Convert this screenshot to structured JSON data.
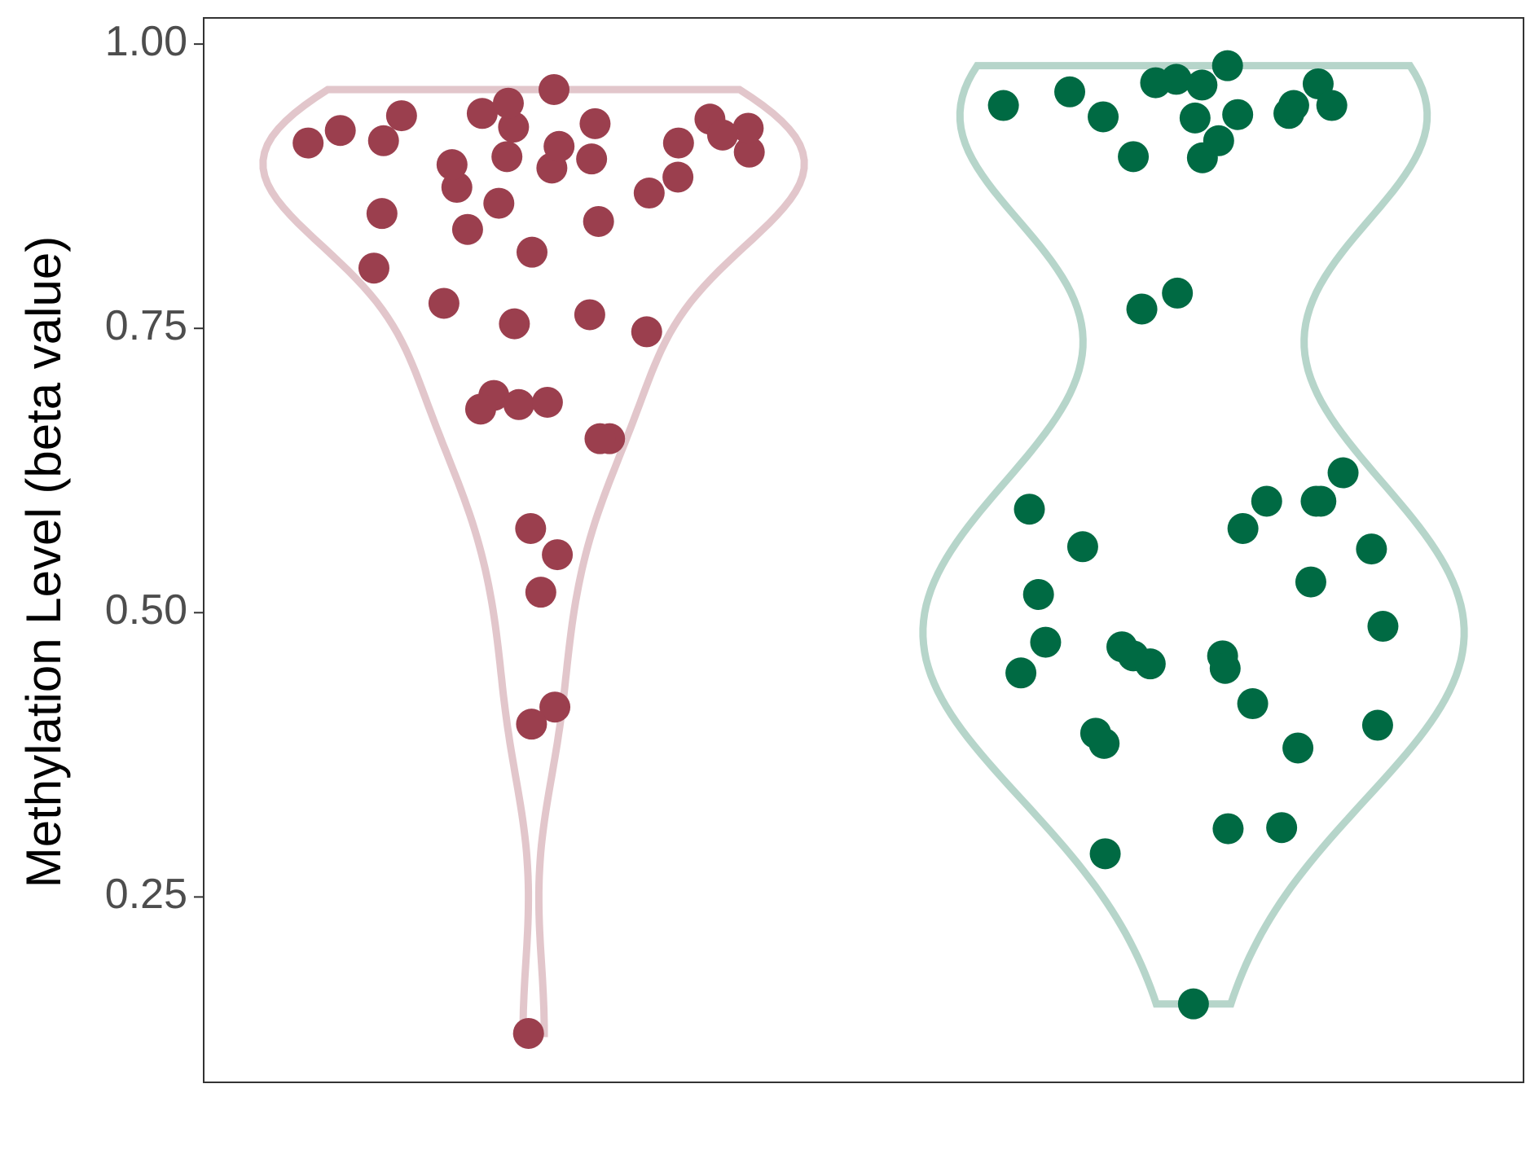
{
  "chart_data": {
    "type": "violin",
    "ylabel": "Methylation Level (beta value)",
    "ylim": [
      0.087,
      1.023
    ],
    "yticks": [
      {
        "value": 0.25,
        "label": "0.25"
      },
      {
        "value": 0.5,
        "label": "0.50"
      },
      {
        "value": 0.75,
        "label": "0.75"
      },
      {
        "value": 1,
        "label": "1.00"
      }
    ],
    "series": [
      {
        "color": "#9b3f4e",
        "outline": "#e2c6cb",
        "values": [
          0.913,
          0.934,
          0.924,
          0.96,
          0.939,
          0.927,
          0.899,
          0.915,
          0.874,
          0.891,
          0.905,
          0.913,
          0.937,
          0.926,
          0.883,
          0.901,
          0.92,
          0.948,
          0.93,
          0.894,
          0.869,
          0.91,
          0.844,
          0.86,
          0.851,
          0.837,
          0.817,
          0.803,
          0.772,
          0.754,
          0.747,
          0.762,
          0.691,
          0.683,
          0.679,
          0.685,
          0.653,
          0.653,
          0.574,
          0.551,
          0.518,
          0.417,
          0.402,
          0.13
        ]
      },
      {
        "color": "#006a43",
        "outline": "#b6d5ca",
        "values": [
          0.958,
          0.939,
          0.915,
          0.969,
          0.936,
          0.965,
          0.946,
          0.935,
          0.9,
          0.964,
          0.946,
          0.981,
          0.938,
          0.966,
          0.946,
          0.901,
          0.781,
          0.767,
          0.623,
          0.598,
          0.598,
          0.598,
          0.591,
          0.574,
          0.556,
          0.558,
          0.527,
          0.516,
          0.488,
          0.474,
          0.47,
          0.462,
          0.462,
          0.455,
          0.451,
          0.447,
          0.42,
          0.401,
          0.394,
          0.385,
          0.381,
          0.311,
          0.31,
          0.288,
          0.156
        ]
      }
    ]
  }
}
